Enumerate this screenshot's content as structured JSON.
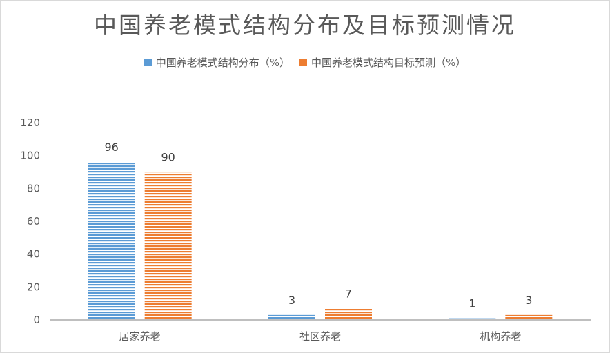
{
  "chart_data": {
    "type": "bar",
    "title": "中国养老模式结构分布及目标预测情况",
    "categories": [
      "居家养老",
      "社区养老",
      "机构养老"
    ],
    "series": [
      {
        "name": "中国养老模式结构分布（%）",
        "values": [
          96,
          3,
          1
        ],
        "color": "#5b9bd5"
      },
      {
        "name": "中国养老模式结构目标预测（%）",
        "values": [
          90,
          7,
          3
        ],
        "color": "#ed7d31"
      }
    ],
    "yticks": [
      "0",
      "20",
      "40",
      "60",
      "80",
      "100",
      "120"
    ],
    "ylim": [
      0,
      120
    ],
    "grid": false,
    "legend_position": "top"
  }
}
